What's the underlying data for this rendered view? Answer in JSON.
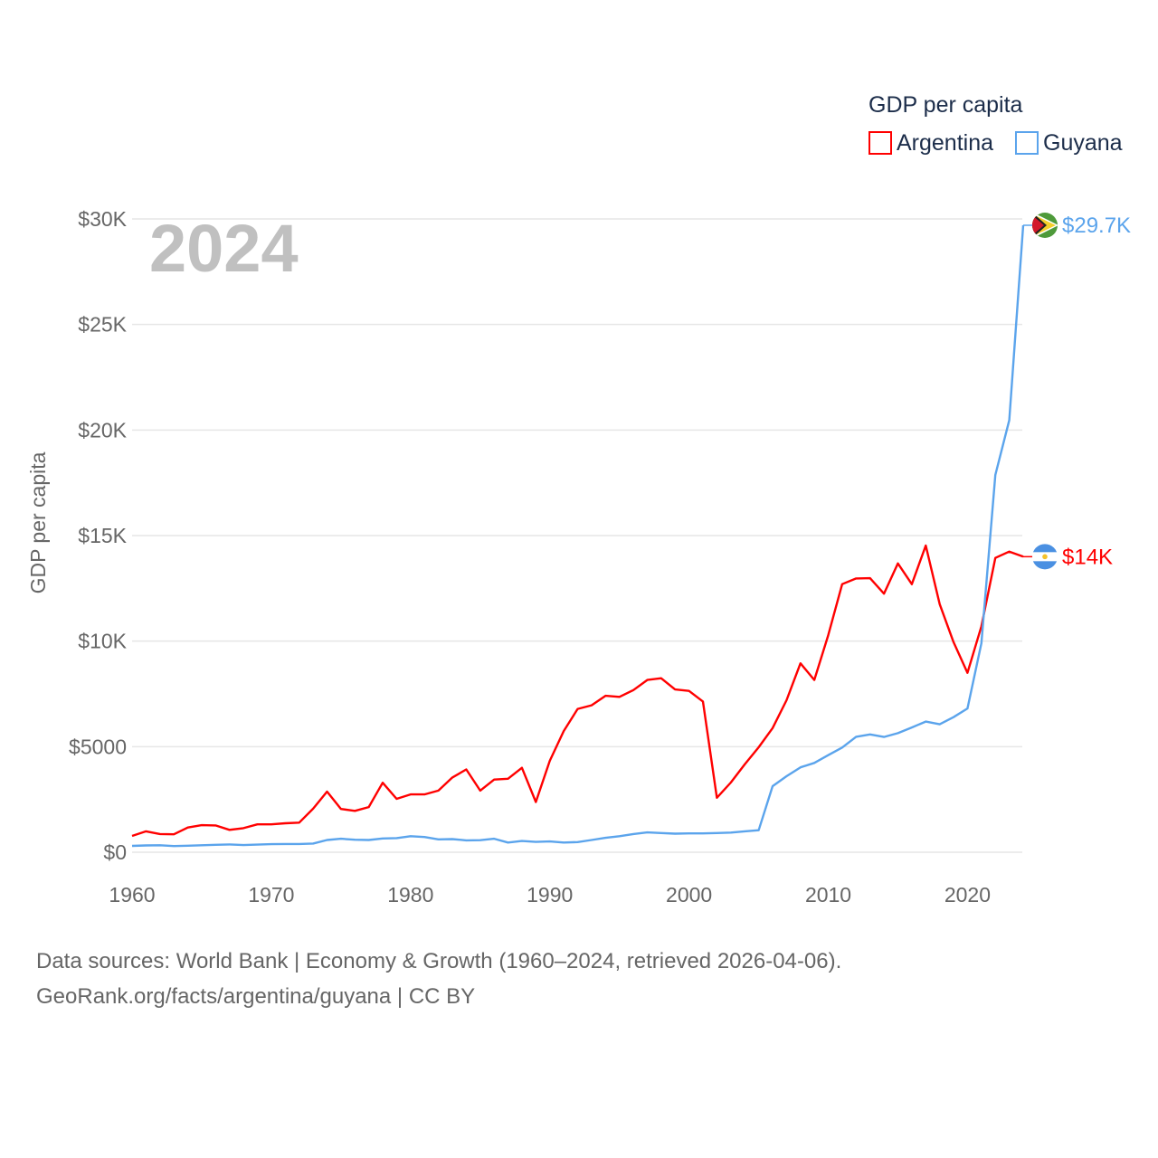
{
  "chart_data": {
    "type": "line",
    "title": "GDP per capita",
    "ylabel": "GDP per capita",
    "xlabel": "",
    "year_label": "2024",
    "xlim": [
      1960,
      2024
    ],
    "ylim": [
      0,
      30000
    ],
    "grid": true,
    "legend_placement": "top-right",
    "x_ticks": [
      1960,
      1970,
      1980,
      1990,
      2000,
      2010,
      2020
    ],
    "x_tick_labels": [
      "1960",
      "1970",
      "1980",
      "1990",
      "2000",
      "2010",
      "2020"
    ],
    "y_ticks": [
      0,
      5000,
      10000,
      15000,
      20000,
      25000,
      30000
    ],
    "y_tick_labels": [
      "$0",
      "$5000",
      "$10K",
      "$15K",
      "$20K",
      "$25K",
      "$30K"
    ],
    "x": [
      1960,
      1961,
      1962,
      1963,
      1964,
      1965,
      1966,
      1967,
      1968,
      1969,
      1970,
      1971,
      1972,
      1973,
      1974,
      1975,
      1976,
      1977,
      1978,
      1979,
      1980,
      1981,
      1982,
      1983,
      1984,
      1985,
      1986,
      1987,
      1988,
      1989,
      1990,
      1991,
      1992,
      1993,
      1994,
      1995,
      1996,
      1997,
      1998,
      1999,
      2000,
      2001,
      2002,
      2003,
      2004,
      2005,
      2006,
      2007,
      2008,
      2009,
      2010,
      2011,
      2012,
      2013,
      2014,
      2015,
      2016,
      2017,
      2018,
      2019,
      2020,
      2021,
      2022,
      2023,
      2024
    ],
    "series": [
      {
        "name": "Argentina",
        "color": "#ff0000",
        "end_label": "$14K",
        "flag": "argentina-flag",
        "values": [
          770,
          990,
          860,
          850,
          1170,
          1280,
          1270,
          1060,
          1140,
          1320,
          1320,
          1370,
          1400,
          2060,
          2870,
          2050,
          1960,
          2140,
          3290,
          2530,
          2740,
          2740,
          2920,
          3540,
          3920,
          2920,
          3440,
          3480,
          4000,
          2380,
          4330,
          5740,
          6790,
          6960,
          7410,
          7360,
          7680,
          8160,
          8240,
          7710,
          7640,
          7140,
          2580,
          3300,
          4160,
          4970,
          5880,
          7200,
          8950,
          8160,
          10280,
          12700,
          12970,
          12980,
          12250,
          13680,
          12700,
          14530,
          11750,
          9950,
          8500,
          10700,
          13940,
          14240,
          14000
        ]
      },
      {
        "name": "Guyana",
        "color": "#5ba4ec",
        "end_label": "$29.7K",
        "flag": "guyana-flag",
        "values": [
          300,
          320,
          330,
          290,
          310,
          330,
          350,
          370,
          340,
          360,
          380,
          390,
          390,
          410,
          580,
          640,
          590,
          580,
          650,
          670,
          760,
          720,
          610,
          620,
          560,
          570,
          640,
          460,
          530,
          490,
          510,
          460,
          480,
          580,
          680,
          760,
          860,
          940,
          910,
          880,
          890,
          890,
          910,
          930,
          990,
          1040,
          3130,
          3600,
          4020,
          4230,
          4600,
          4960,
          5470,
          5580,
          5460,
          5640,
          5910,
          6190,
          6060,
          6400,
          6810,
          9900,
          17870,
          20470,
          29700
        ]
      }
    ]
  },
  "footer": {
    "line1": "Data sources: World Bank | Economy & Growth (1960–2024, retrieved 2026-04-06).",
    "line2": "GeoRank.org/facts/argentina/guyana | CC BY"
  }
}
